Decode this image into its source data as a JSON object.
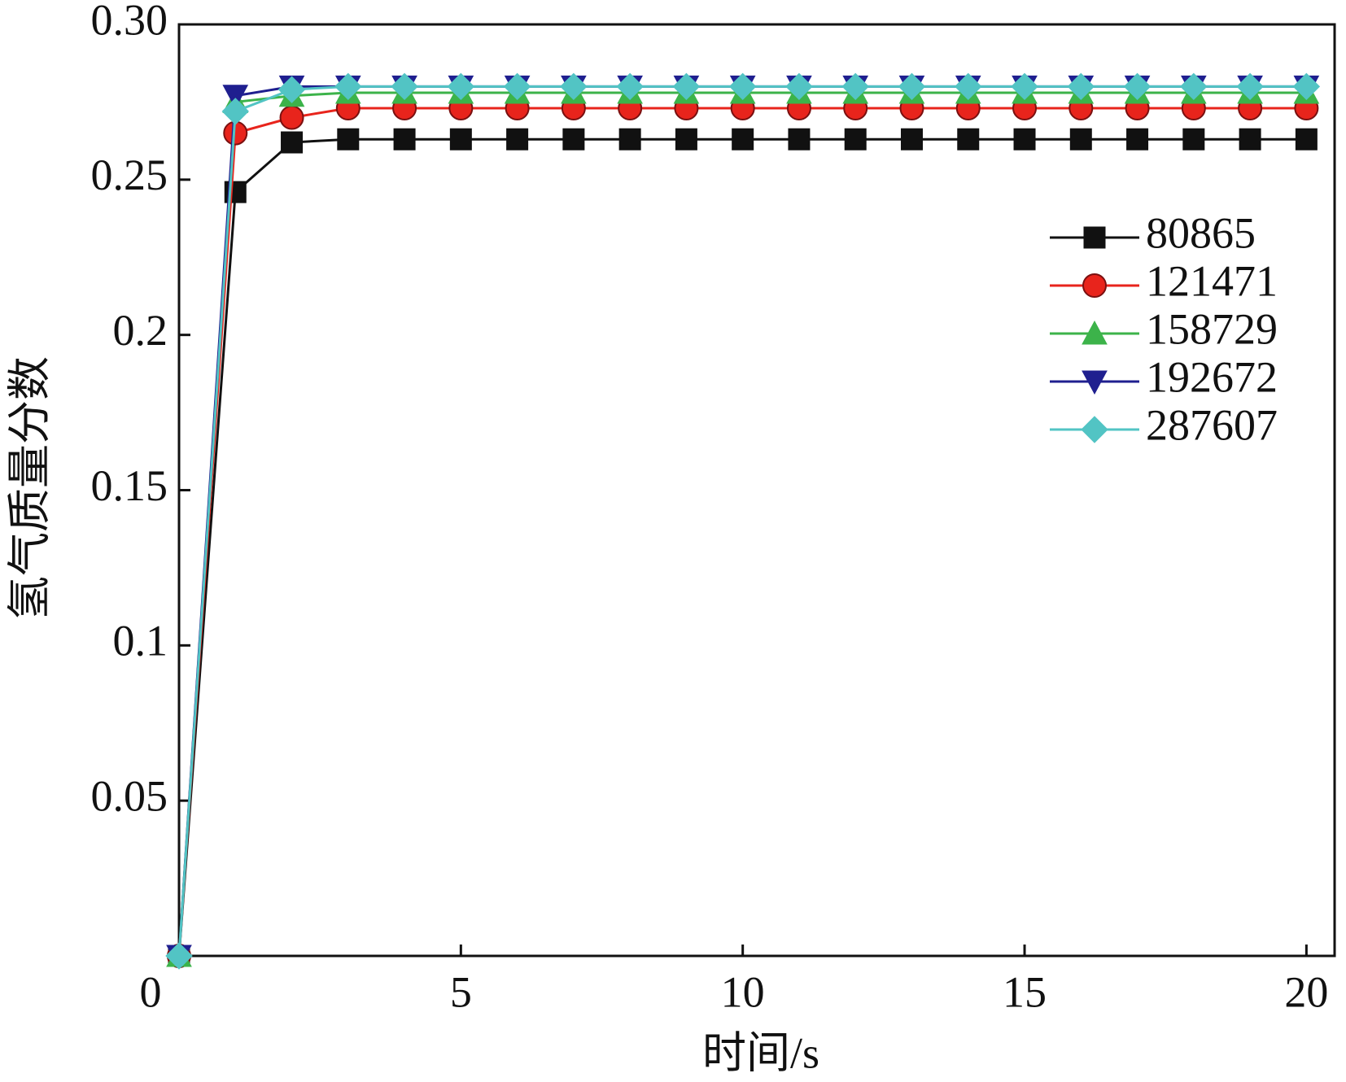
{
  "chart_data": {
    "type": "line",
    "xlabel": "时间/s",
    "ylabel": "氢气质量分数",
    "x": [
      0,
      1,
      2,
      3,
      4,
      5,
      6,
      7,
      8,
      9,
      10,
      11,
      12,
      13,
      14,
      15,
      16,
      17,
      18,
      19,
      20
    ],
    "series": [
      {
        "name": "80865",
        "color": "#111111",
        "marker": "square",
        "values": [
          0,
          0.246,
          0.262,
          0.263,
          0.263,
          0.263,
          0.263,
          0.263,
          0.263,
          0.263,
          0.263,
          0.263,
          0.263,
          0.263,
          0.263,
          0.263,
          0.263,
          0.263,
          0.263,
          0.263,
          0.263
        ]
      },
      {
        "name": "121471",
        "color": "#e8241c",
        "marker": "circle",
        "values": [
          0,
          0.265,
          0.27,
          0.273,
          0.273,
          0.273,
          0.273,
          0.273,
          0.273,
          0.273,
          0.273,
          0.273,
          0.273,
          0.273,
          0.273,
          0.273,
          0.273,
          0.273,
          0.273,
          0.273,
          0.273
        ]
      },
      {
        "name": "158729",
        "color": "#3cb34a",
        "marker": "triangle-up",
        "values": [
          0,
          0.275,
          0.277,
          0.278,
          0.278,
          0.278,
          0.278,
          0.278,
          0.278,
          0.278,
          0.278,
          0.278,
          0.278,
          0.278,
          0.278,
          0.278,
          0.278,
          0.278,
          0.278,
          0.278,
          0.278
        ]
      },
      {
        "name": "192672",
        "color": "#1f1f8f",
        "marker": "triangle-down",
        "values": [
          0,
          0.277,
          0.28,
          0.28,
          0.28,
          0.28,
          0.28,
          0.28,
          0.28,
          0.28,
          0.28,
          0.28,
          0.28,
          0.28,
          0.28,
          0.28,
          0.28,
          0.28,
          0.28,
          0.28,
          0.28
        ]
      },
      {
        "name": "287607",
        "color": "#52c4c4",
        "marker": "diamond",
        "values": [
          0,
          0.272,
          0.279,
          0.28,
          0.28,
          0.28,
          0.28,
          0.28,
          0.28,
          0.28,
          0.28,
          0.28,
          0.28,
          0.28,
          0.28,
          0.28,
          0.28,
          0.28,
          0.28,
          0.28,
          0.28
        ]
      }
    ],
    "xlim": [
      0,
      20.5
    ],
    "ylim": [
      0,
      0.3
    ],
    "xticks": [
      0,
      5,
      10,
      15,
      20
    ],
    "yticks": [
      0.05,
      0.1,
      0.15,
      0.2,
      0.25,
      {
        "value": 0.3,
        "label": "0.30"
      }
    ],
    "legend": "upper right"
  }
}
